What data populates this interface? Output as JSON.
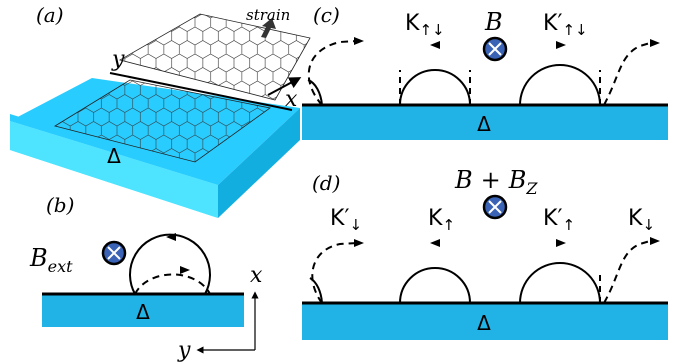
{
  "colors": {
    "substrate_top": "#29ccff",
    "substrate_side": "#13aee0",
    "substrate_face": "#5ff0ff",
    "bar": "#22b3e6",
    "ink": "#000000",
    "symbol_fill": "#3a63b5"
  },
  "panels": {
    "a": {
      "label": "(a)",
      "strain_label": "strain",
      "axis_y": "y",
      "axis_x": "x",
      "substrate_label": "Δ"
    },
    "b": {
      "label": "(b)",
      "field_base": "B",
      "field_sub": "ext",
      "substrate_label": "Δ",
      "axis_x": "x",
      "axis_y": "y"
    },
    "c": {
      "label": "(c)",
      "field_label": "B",
      "states": [
        {
          "base": "K",
          "prime": "",
          "sub": "↑↓"
        },
        {
          "base": "K",
          "prime": "′",
          "sub": "↑↓"
        }
      ],
      "substrate_label": "Δ"
    },
    "d": {
      "label": "(d)",
      "field_B": "B",
      "field_plus": "+",
      "field_Bz_base": "B",
      "field_Bz_sub": "Z",
      "states": [
        {
          "base": "K",
          "prime": "′",
          "sub": "↓"
        },
        {
          "base": "K",
          "prime": "",
          "sub": "↑"
        },
        {
          "base": "K",
          "prime": "′",
          "sub": "↑"
        },
        {
          "base": "K",
          "prime": "",
          "sub": "↓"
        }
      ],
      "substrate_label": "Δ"
    }
  }
}
